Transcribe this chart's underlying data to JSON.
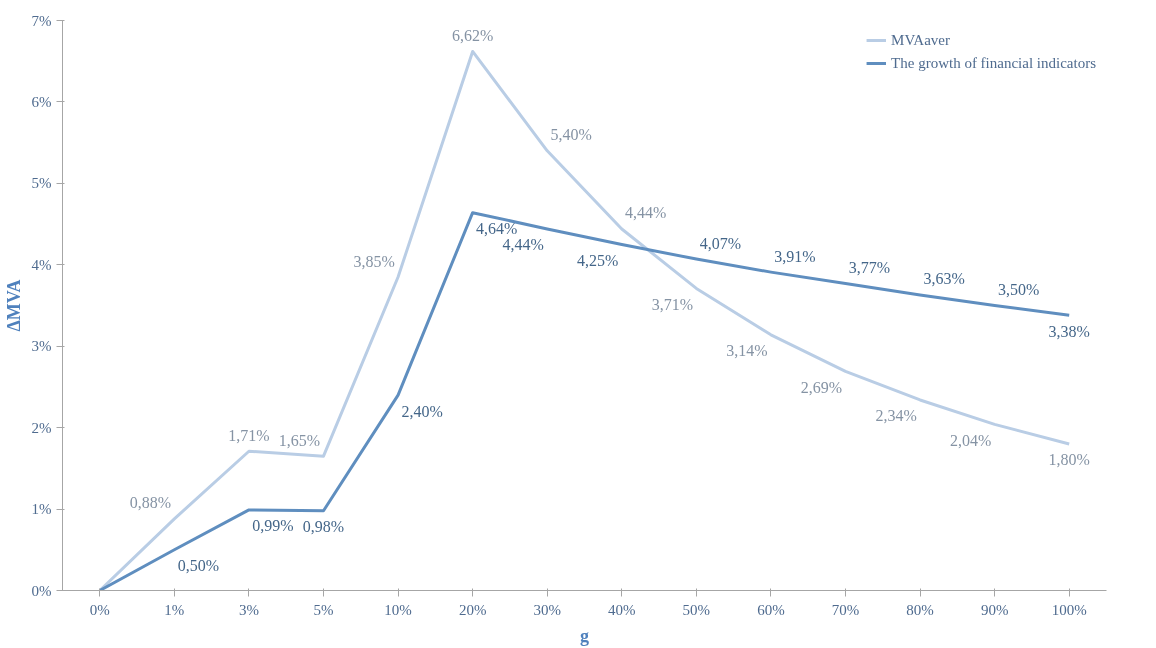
{
  "chart_data": {
    "type": "line",
    "xlabel": "g",
    "ylabel": "ΔMVA",
    "categories": [
      "0%",
      "1%",
      "3%",
      "5%",
      "10%",
      "20%",
      "30%",
      "40%",
      "50%",
      "60%",
      "70%",
      "80%",
      "90%",
      "100%"
    ],
    "series": [
      {
        "name": "MVAaver",
        "color": "#b9cde5",
        "values": [
          0,
          0.88,
          1.71,
          1.65,
          3.85,
          6.62,
          5.4,
          4.44,
          3.71,
          3.14,
          2.69,
          2.34,
          2.04,
          1.8
        ],
        "value_labels": [
          null,
          "0,88%",
          "1,71%",
          "1,65%",
          "3,85%",
          "6,62%",
          "5,40%",
          "4,44%",
          "3,71%",
          "3,14%",
          "2,69%",
          "2,34%",
          "2,04%",
          "1,80%"
        ]
      },
      {
        "name": "The growth of financial indicators",
        "color": "#5f8ebf",
        "values": [
          0,
          0.5,
          0.99,
          0.98,
          2.4,
          4.64,
          4.44,
          4.25,
          4.07,
          3.91,
          3.77,
          3.63,
          3.5,
          3.38
        ],
        "value_labels": [
          null,
          "0,50%",
          "0,99%",
          "0,98%",
          "2,40%",
          "4,64%",
          "4,44%",
          "4,25%",
          "4,07%",
          "3,91%",
          "3,77%",
          "3,63%",
          "3,50%",
          "3,38%"
        ]
      }
    ],
    "ylim": [
      0,
      7
    ],
    "yticks": [
      {
        "value": 0,
        "label": "0%"
      },
      {
        "value": 1,
        "label": "1%"
      },
      {
        "value": 2,
        "label": "2%"
      },
      {
        "value": 3,
        "label": "3%"
      },
      {
        "value": 4,
        "label": "4%"
      },
      {
        "value": 5,
        "label": "5%"
      },
      {
        "value": 6,
        "label": "6%"
      },
      {
        "value": 7,
        "label": "7%"
      }
    ],
    "grid": false,
    "legend": "top right",
    "marker": "none",
    "line_style": "solid"
  }
}
